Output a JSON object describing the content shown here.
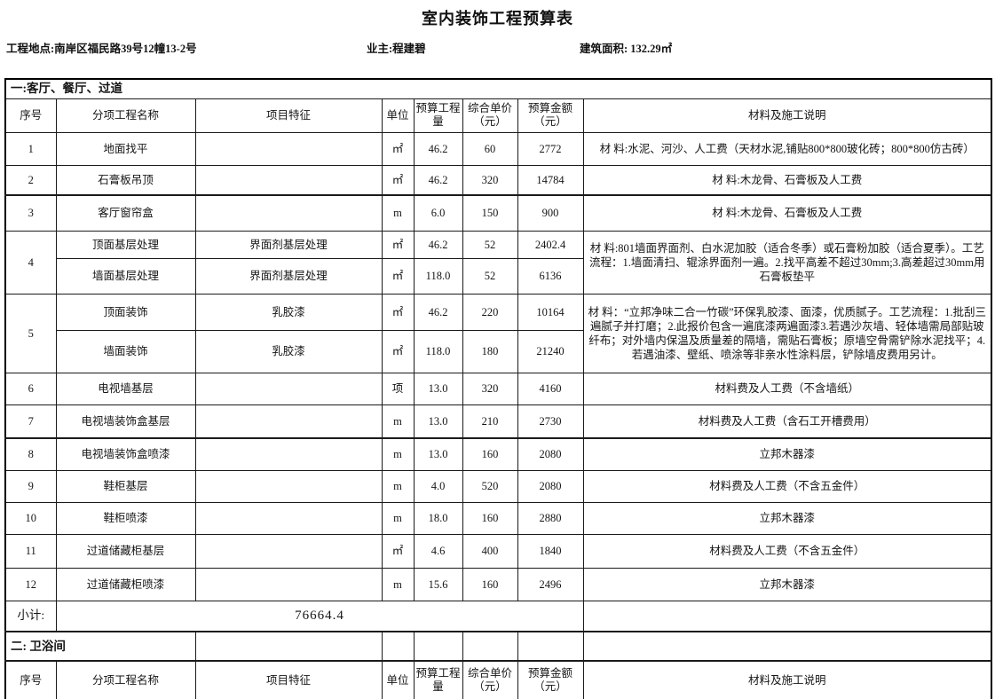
{
  "title": "室内装饰工程预算表",
  "info": {
    "location": "工程地点:南岸区福民路39号12幢13-2号",
    "owner": "业主:程建碧",
    "area": "建筑面积: 132.29㎡"
  },
  "section1": {
    "label": "一:客厅、餐厅、过道"
  },
  "columns": [
    "序号",
    "分项工程名称",
    "项目特征",
    "单位",
    "预算工程量",
    "综合单价（元）",
    "预算金额（元）",
    "材料及施工说明"
  ],
  "rows": [
    {
      "no": "1",
      "name": "地面找平",
      "feature": "",
      "unit": "㎡",
      "qty": "46.2",
      "price": "60",
      "amount": "2772",
      "note": "材 料:水泥、河沙、人工费（天材水泥,铺贴800*800玻化砖；800*800仿古砖）"
    },
    {
      "no": "2",
      "name": "石膏板吊顶",
      "feature": "",
      "unit": "㎡",
      "qty": "46.2",
      "price": "320",
      "amount": "14784",
      "note": "材 料:木龙骨、石膏板及人工费"
    },
    {
      "no": "3",
      "name": "客厅窗帘盒",
      "feature": "",
      "unit": "m",
      "qty": "6.0",
      "price": "150",
      "amount": "900",
      "note": "材 料:木龙骨、石膏板及人工费"
    },
    {
      "no": "4",
      "sub": [
        {
          "name": "顶面基层处理",
          "feature": "界面剂基层处理",
          "unit": "㎡",
          "qty": "46.2",
          "price": "52",
          "amount": "2402.4"
        },
        {
          "name": "墙面基层处理",
          "feature": "界面剂基层处理",
          "unit": "㎡",
          "qty": "118.0",
          "price": "52",
          "amount": "6136"
        }
      ],
      "note": "材  料:801墙面界面剂、白水泥加胶（适合冬季）或石膏粉加胶（适合夏季）。工艺流程：1.墙面清扫、辊涂界面剂一遍。2.找平高差不超过30mm;3.高差超过30mm用石膏板垫平"
    },
    {
      "no": "5",
      "sub": [
        {
          "name": "顶面装饰",
          "feature": "乳胶漆",
          "unit": "㎡",
          "qty": "46.2",
          "price": "220",
          "amount": "10164"
        },
        {
          "name": "墙面装饰",
          "feature": "乳胶漆",
          "unit": "㎡",
          "qty": "118.0",
          "price": "180",
          "amount": "21240"
        }
      ],
      "note": "材 料：“立邦净味二合一竹碳”环保乳胶漆、面漆，优质腻子。工艺流程：1.批刮三遍腻子并打磨；2.此报价包含一遍底漆两遍面漆3.若遇沙灰墙、轻体墙需局部贴玻纤布；对外墙内保温及质量差的隔墙，需贴石膏板；原墙空骨需铲除水泥找平；4.若遇油漆、壁纸、喷涂等非亲水性涂料层，铲除墙皮费用另计。"
    },
    {
      "no": "6",
      "name": "电视墙基层",
      "feature": "",
      "unit": "项",
      "qty": "13.0",
      "price": "320",
      "amount": "4160",
      "note": "材料费及人工费（不含墙纸）"
    },
    {
      "no": "7",
      "name": "电视墙装饰盒基层",
      "feature": "",
      "unit": "m",
      "qty": "13.0",
      "price": "210",
      "amount": "2730",
      "note": "材料费及人工费（含石工开槽费用）"
    },
    {
      "no": "8",
      "name": "电视墙装饰盒喷漆",
      "feature": "",
      "unit": "m",
      "qty": "13.0",
      "price": "160",
      "amount": "2080",
      "note": "立邦木器漆"
    },
    {
      "no": "9",
      "name": "鞋柜基层",
      "feature": "",
      "unit": "m",
      "qty": "4.0",
      "price": "520",
      "amount": "2080",
      "note": "材料费及人工费（不含五金件）"
    },
    {
      "no": "10",
      "name": "鞋柜喷漆",
      "feature": "",
      "unit": "m",
      "qty": "18.0",
      "price": "160",
      "amount": "2880",
      "note": "立邦木器漆"
    },
    {
      "no": "11",
      "name": "过道储藏柜基层",
      "feature": "",
      "unit": "㎡",
      "qty": "4.6",
      "price": "400",
      "amount": "1840",
      "note": "材料费及人工费（不含五金件）"
    },
    {
      "no": "12",
      "name": "过道储藏柜喷漆",
      "feature": "",
      "unit": "m",
      "qty": "15.6",
      "price": "160",
      "amount": "2496",
      "note": "立邦木器漆"
    }
  ],
  "subtotal": {
    "label": "小计:",
    "value": "76664.4"
  },
  "section2": {
    "label": "二: 卫浴间"
  }
}
